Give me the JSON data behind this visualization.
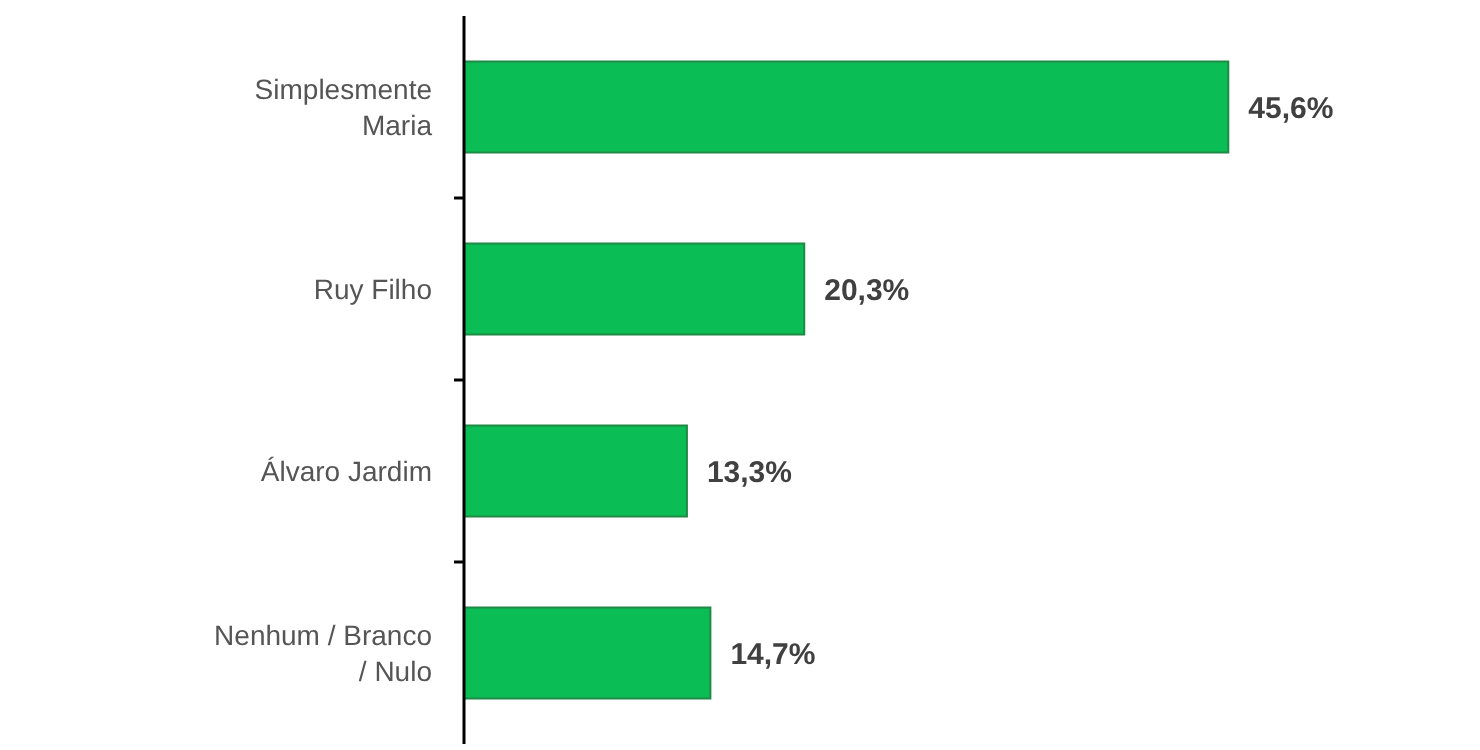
{
  "chart_data": {
    "type": "bar",
    "orientation": "horizontal",
    "categories": [
      "Simplesmente Maria",
      "Ruy Filho",
      "Álvaro Jardim",
      "Nenhum / Branco / Nulo"
    ],
    "values": [
      45.6,
      20.3,
      13.3,
      14.7
    ],
    "value_labels": [
      "45,6%",
      "20,3%",
      "13,3%",
      "14,7%"
    ],
    "color": "#0bbd55",
    "tick_labels": "y"
  }
}
